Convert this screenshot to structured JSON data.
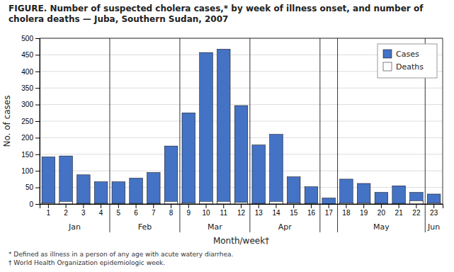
{
  "chart_data": {
    "type": "bar",
    "title": "FIGURE. Number of suspected cholera cases,* by week of illness onset, and number of cholera deaths — Juba, Southern Sudan, 2007",
    "x_label": "Month/week†",
    "y_label": "No. of cases",
    "footnotes": [
      "* Defined as illness in a person of any age with acute watery diarrhea.",
      "† World Health Organization epidemiologic week."
    ],
    "categories": [
      "1",
      "2",
      "3",
      "4",
      "5",
      "6",
      "7",
      "8",
      "9",
      "10",
      "11",
      "12",
      "13",
      "14",
      "15",
      "16",
      "17",
      "18",
      "19",
      "20",
      "21",
      "22",
      "23"
    ],
    "series": [
      {
        "name": "Cases",
        "color": "#4472C4",
        "values": [
          142,
          145,
          88,
          67,
          67,
          78,
          95,
          175,
          275,
          457,
          467,
          297,
          178,
          210,
          82,
          52,
          18,
          75,
          62,
          35,
          55,
          35,
          30
        ]
      },
      {
        "name": "Deaths",
        "color": "#FFFFFF",
        "values": [
          3,
          8,
          2,
          2,
          2,
          2,
          2,
          8,
          3,
          8,
          8,
          5,
          2,
          8,
          3,
          2,
          0,
          3,
          3,
          2,
          2,
          10,
          3
        ]
      }
    ],
    "annotations": [
      {
        "text": "Jan",
        "categories": [
          "1",
          "2",
          "3",
          "4"
        ]
      },
      {
        "text": "Feb",
        "categories": [
          "5",
          "6",
          "7",
          "8"
        ]
      },
      {
        "text": "Mar",
        "categories": [
          "9",
          "10",
          "11",
          "12"
        ]
      },
      {
        "text": "Apr",
        "categories": [
          "13",
          "14",
          "15",
          "16"
        ]
      },
      {
        "text": "May",
        "categories": [
          "18",
          "19",
          "20",
          "21",
          "22"
        ]
      },
      {
        "text": "Jun",
        "categories": [
          "23"
        ]
      }
    ],
    "ylim": [
      0,
      500
    ],
    "yticks": [
      0,
      50,
      100,
      150,
      200,
      250,
      300,
      350,
      400,
      450,
      500
    ],
    "grid": true,
    "legend": "upper right"
  }
}
